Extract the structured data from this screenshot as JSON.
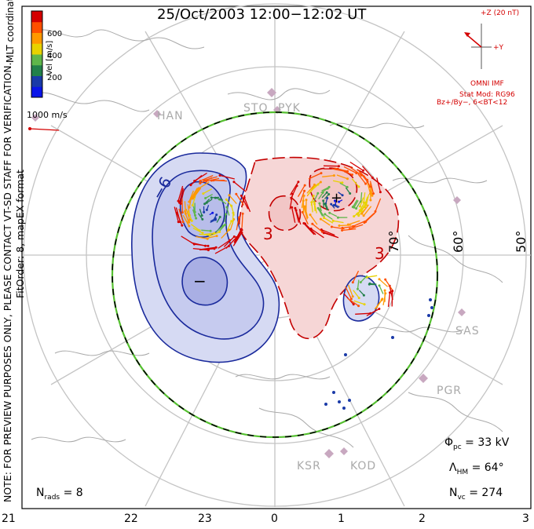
{
  "title": "25/Oct/2003 12:00−12:02 UT",
  "notes": {
    "preview": "NOTE: FOR PREVIEW PURPOSES ONLY, PLEASE CONTACT VT-SD STAFF FOR VERIFICATION.",
    "fit": "FitOrder: 8, mapEX format",
    "coords": "MLT coordinates"
  },
  "colorbar": {
    "label": "Vel [m/s]",
    "ticks": [
      "600",
      "400",
      "200"
    ],
    "colors": [
      "#d40000",
      "#ff5000",
      "#ff9900",
      "#e8d200",
      "#5fb64a",
      "#22804a",
      "#1a3aa8",
      "#0a14e8"
    ]
  },
  "velocity_scale": {
    "label": "1000 m/s"
  },
  "imf": {
    "z_label": "+Z (20 nT)",
    "y_label": "+Y",
    "source": "OMNI IMF",
    "model": "Stat Mod: RG96",
    "condition": "Bz+/By−, 6<BT<12"
  },
  "stats": {
    "phi_pc": {
      "symbol": "Φ",
      "sub": "pc",
      "value": "= 33 kV"
    },
    "lambda_hm": {
      "symbol": "Λ",
      "sub": "HM",
      "value": "= 64°"
    },
    "n_vc": {
      "symbol": "N",
      "sub": "vc",
      "value": "= 274"
    },
    "n_rads": {
      "symbol": "N",
      "sub": "rads",
      "value": "= 8"
    }
  },
  "mlt_ticks": [
    "21",
    "22",
    "23",
    "0",
    "1",
    "2",
    "3"
  ],
  "latitude_labels": [
    "70°",
    "60°",
    "50°"
  ],
  "stations": [
    "HAN",
    "STO",
    "PYK",
    "SAS",
    "PGR",
    "KSR",
    "KOD"
  ],
  "contour_labels": {
    "neg": [
      "−6",
      "−"
    ],
    "pos": [
      "3",
      "3",
      "+"
    ]
  },
  "colors": {
    "negative_fill": "#c8cdf0",
    "negative_line": "#1a2a9c",
    "positive_fill": "#f6d2d2",
    "positive_line": "#c40000",
    "grid": "#c0c0c0",
    "boundary_green": "#55c030"
  }
}
